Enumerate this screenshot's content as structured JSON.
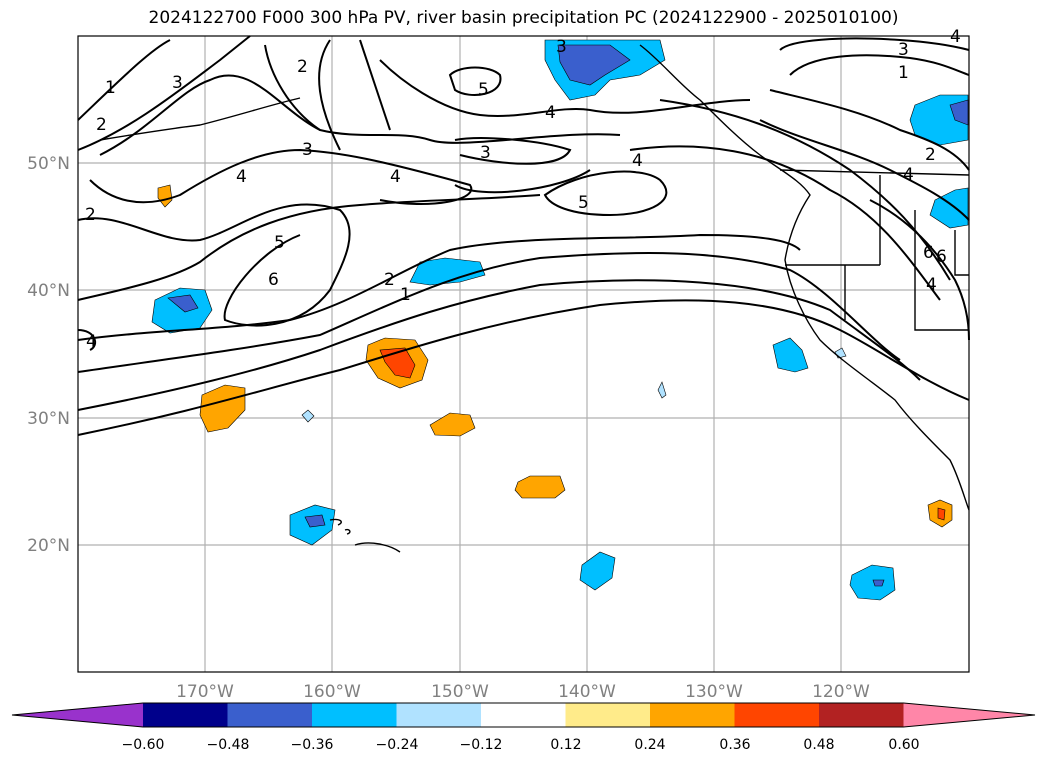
{
  "title": "2024122700 F000 300 hPa PV, river basin precipitation PC (2024122900 - 2025010100)",
  "lat_labels": [
    "50°N",
    "40°N",
    "30°N",
    "20°N"
  ],
  "lon_labels": [
    "170°W",
    "160°W",
    "150°W",
    "140°W",
    "130°W",
    "120°W"
  ],
  "colorbar": {
    "ticks": [
      "−0.60",
      "−0.48",
      "−0.36",
      "−0.24",
      "−0.12",
      "0.12",
      "0.24",
      "0.36",
      "0.48",
      "0.60"
    ],
    "colors": [
      "#9932cc",
      "#00008b",
      "#3a5fcd",
      "#00bfff",
      "#b0e2ff",
      "#ffffff",
      "#ffeb8a",
      "#ffa500",
      "#ff4500",
      "#b22222",
      "#ff86a8"
    ]
  },
  "contour_labels": [
    "1",
    "2",
    "3",
    "4",
    "5",
    "6",
    "3",
    "4",
    "5",
    "3",
    "4",
    "5",
    "4",
    "3",
    "1",
    "2",
    "4",
    "6",
    "2",
    "1",
    "3",
    "4",
    "2",
    "4",
    "6",
    "4",
    "2"
  ]
}
